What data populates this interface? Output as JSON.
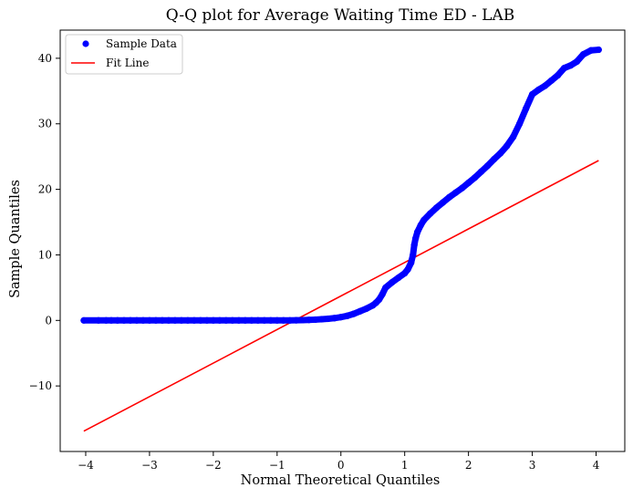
{
  "chart_data": {
    "type": "scatter",
    "title": "Q-Q plot for Average Waiting Time ED - LAB",
    "xlabel": "Normal Theoretical Quantiles",
    "ylabel": "Sample Quantiles",
    "xlim": [
      -4.4,
      4.45
    ],
    "ylim": [
      -20,
      44.3
    ],
    "xticks": [
      {
        "value": -4,
        "label": "−4"
      },
      {
        "value": -3,
        "label": "−3"
      },
      {
        "value": -2,
        "label": "−2"
      },
      {
        "value": -1,
        "label": "−1"
      },
      {
        "value": 0,
        "label": "0"
      },
      {
        "value": 1,
        "label": "1"
      },
      {
        "value": 2,
        "label": "2"
      },
      {
        "value": 3,
        "label": "3"
      },
      {
        "value": 4,
        "label": "4"
      }
    ],
    "yticks": [
      {
        "value": -10,
        "label": "−10"
      },
      {
        "value": 0,
        "label": "0"
      },
      {
        "value": 10,
        "label": "10"
      },
      {
        "value": 20,
        "label": "20"
      },
      {
        "value": 30,
        "label": "30"
      },
      {
        "value": 40,
        "label": "40"
      }
    ],
    "grid": false,
    "legend_position": "top-left",
    "series": [
      {
        "name": "Sample Data",
        "kind": "scatter",
        "color": "#0000ff",
        "points": [
          [
            -4.03,
            0.0
          ],
          [
            -3.8,
            0.0
          ],
          [
            -3.68,
            0.0
          ],
          [
            -3.6,
            0.0
          ],
          [
            -3.5,
            0.0
          ],
          [
            -3.4,
            0.0
          ],
          [
            -3.3,
            0.0
          ],
          [
            -3.2,
            0.0
          ],
          [
            -3.1,
            0.0
          ],
          [
            -3.0,
            0.0
          ],
          [
            -2.9,
            0.0
          ],
          [
            -2.8,
            0.0
          ],
          [
            -2.7,
            0.0
          ],
          [
            -2.6,
            0.0
          ],
          [
            -2.5,
            0.0
          ],
          [
            -2.4,
            0.0
          ],
          [
            -2.3,
            0.0
          ],
          [
            -2.2,
            0.0
          ],
          [
            -2.1,
            0.0
          ],
          [
            -2.0,
            0.0
          ],
          [
            -1.9,
            0.0
          ],
          [
            -1.8,
            0.0
          ],
          [
            -1.7,
            0.0
          ],
          [
            -1.6,
            0.0
          ],
          [
            -1.5,
            0.0
          ],
          [
            -1.4,
            0.0
          ],
          [
            -1.3,
            0.0
          ],
          [
            -1.2,
            0.0
          ],
          [
            -1.1,
            0.0
          ],
          [
            -1.0,
            0.0
          ],
          [
            -0.9,
            0.0
          ],
          [
            -0.8,
            0.0
          ],
          [
            -0.7,
            0.02
          ],
          [
            -0.6,
            0.05
          ],
          [
            -0.5,
            0.08
          ],
          [
            -0.4,
            0.12
          ],
          [
            -0.3,
            0.18
          ],
          [
            -0.2,
            0.25
          ],
          [
            -0.1,
            0.35
          ],
          [
            0.0,
            0.5
          ],
          [
            0.1,
            0.7
          ],
          [
            0.2,
            1.0
          ],
          [
            0.3,
            1.4
          ],
          [
            0.4,
            1.8
          ],
          [
            0.5,
            2.3
          ],
          [
            0.55,
            2.7
          ],
          [
            0.6,
            3.2
          ],
          [
            0.65,
            4.0
          ],
          [
            0.7,
            5.0
          ],
          [
            0.8,
            5.8
          ],
          [
            0.9,
            6.5
          ],
          [
            1.0,
            7.2
          ],
          [
            1.05,
            7.8
          ],
          [
            1.1,
            8.8
          ],
          [
            1.13,
            10.0
          ],
          [
            1.15,
            11.5
          ],
          [
            1.17,
            12.5
          ],
          [
            1.2,
            13.5
          ],
          [
            1.25,
            14.5
          ],
          [
            1.3,
            15.3
          ],
          [
            1.4,
            16.3
          ],
          [
            1.5,
            17.2
          ],
          [
            1.6,
            18.0
          ],
          [
            1.7,
            18.8
          ],
          [
            1.8,
            19.5
          ],
          [
            1.9,
            20.2
          ],
          [
            2.0,
            21.0
          ],
          [
            2.1,
            21.8
          ],
          [
            2.2,
            22.7
          ],
          [
            2.3,
            23.6
          ],
          [
            2.4,
            24.6
          ],
          [
            2.5,
            25.5
          ],
          [
            2.6,
            26.6
          ],
          [
            2.7,
            28.0
          ],
          [
            2.8,
            30.0
          ],
          [
            2.9,
            32.3
          ],
          [
            3.0,
            34.5
          ],
          [
            3.1,
            35.2
          ],
          [
            3.2,
            35.8
          ],
          [
            3.3,
            36.6
          ],
          [
            3.4,
            37.4
          ],
          [
            3.5,
            38.5
          ],
          [
            3.6,
            38.9
          ],
          [
            3.7,
            39.5
          ],
          [
            3.8,
            40.6
          ],
          [
            3.92,
            41.2
          ],
          [
            4.04,
            41.3
          ]
        ]
      },
      {
        "name": "Fit Line",
        "kind": "line",
        "color": "#ff0000",
        "points": [
          [
            -4.03,
            -16.9
          ],
          [
            4.04,
            24.4
          ]
        ]
      }
    ]
  }
}
